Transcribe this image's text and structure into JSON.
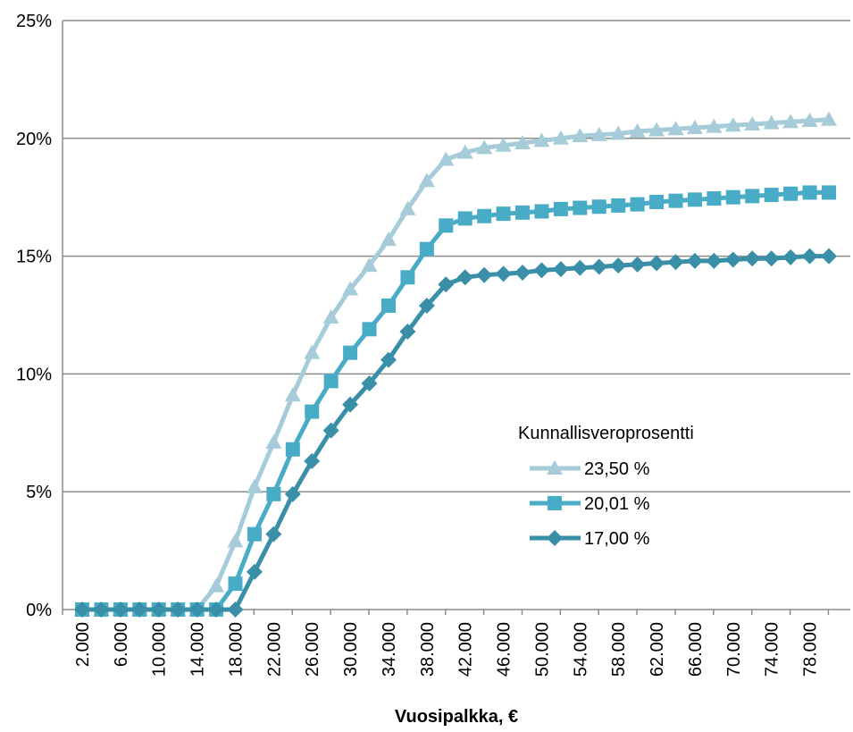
{
  "chart_data": {
    "type": "line",
    "xlabel": "Vuosipalkka, €",
    "ylabel": "",
    "x_tick_labels": [
      "2.000",
      "6.000",
      "10.000",
      "14.000",
      "18.000",
      "22.000",
      "26.000",
      "30.000",
      "34.000",
      "38.000",
      "42.000",
      "46.000",
      "50.000",
      "54.000",
      "58.000",
      "62.000",
      "66.000",
      "70.000",
      "74.000",
      "78.000"
    ],
    "x": [
      2000,
      4000,
      6000,
      8000,
      10000,
      12000,
      14000,
      16000,
      18000,
      20000,
      22000,
      24000,
      26000,
      28000,
      30000,
      32000,
      34000,
      36000,
      38000,
      40000,
      42000,
      44000,
      46000,
      48000,
      50000,
      52000,
      54000,
      56000,
      58000,
      60000,
      62000,
      64000,
      66000,
      68000,
      70000,
      72000,
      74000,
      76000,
      78000,
      80000
    ],
    "y_tick_labels": [
      "0%",
      "5%",
      "10%",
      "15%",
      "20%",
      "25%"
    ],
    "ylim": [
      0,
      25
    ],
    "y_unit": "%",
    "grid": "horizontal",
    "legend": {
      "title": "Kunnallisveroprosentti",
      "position": "center-right"
    },
    "series": [
      {
        "name": "23,50 %",
        "marker": "triangle",
        "color": "#a6cbd9",
        "values": [
          0,
          0,
          0,
          0,
          0,
          0,
          0,
          1.0,
          2.9,
          5.2,
          7.1,
          9.1,
          10.9,
          12.4,
          13.6,
          14.6,
          15.7,
          17.0,
          18.2,
          19.1,
          19.4,
          19.6,
          19.7,
          19.8,
          19.9,
          20.0,
          20.1,
          20.15,
          20.2,
          20.3,
          20.35,
          20.4,
          20.45,
          20.5,
          20.55,
          20.6,
          20.65,
          20.7,
          20.75,
          20.8
        ]
      },
      {
        "name": "20,01 %",
        "marker": "square",
        "color": "#49acc6",
        "values": [
          0,
          0,
          0,
          0,
          0,
          0,
          0,
          0,
          1.1,
          3.2,
          4.9,
          6.8,
          8.4,
          9.7,
          10.9,
          11.9,
          12.9,
          14.1,
          15.3,
          16.3,
          16.6,
          16.7,
          16.8,
          16.85,
          16.9,
          17.0,
          17.05,
          17.1,
          17.15,
          17.2,
          17.3,
          17.35,
          17.4,
          17.45,
          17.5,
          17.55,
          17.6,
          17.65,
          17.7,
          17.7
        ]
      },
      {
        "name": "17,00 %",
        "marker": "diamond",
        "color": "#3a8fa8",
        "values": [
          0,
          0,
          0,
          0,
          0,
          0,
          0,
          0,
          0,
          1.6,
          3.2,
          4.9,
          6.3,
          7.6,
          8.7,
          9.6,
          10.6,
          11.8,
          12.9,
          13.8,
          14.1,
          14.2,
          14.25,
          14.3,
          14.4,
          14.45,
          14.5,
          14.55,
          14.6,
          14.65,
          14.7,
          14.75,
          14.8,
          14.8,
          14.85,
          14.9,
          14.9,
          14.95,
          15.0,
          15.0
        ]
      }
    ]
  }
}
